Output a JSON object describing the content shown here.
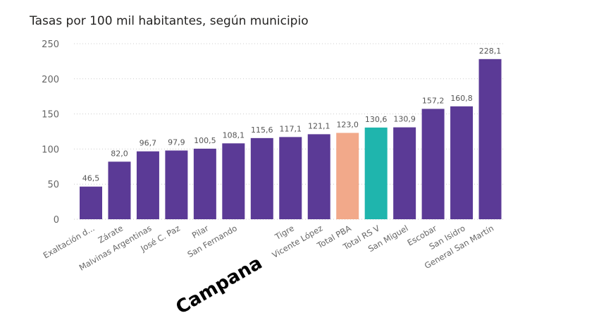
{
  "chart_data": {
    "type": "bar",
    "title": "Tasas por 100 mil habitantes, según municipio",
    "categories": [
      "Exaltación d...",
      "Zárate",
      "Malvinas Argentinas",
      "José C. Paz",
      "Pilar",
      "San Fernando",
      "Campana",
      "Tigre",
      "Vicente López",
      "Total PBA",
      "Total RS V",
      "San Miguel",
      "Escobar",
      "San Isidro",
      "General San Martín"
    ],
    "values": [
      46.5,
      82.0,
      96.7,
      97.9,
      100.5,
      108.1,
      115.6,
      117.1,
      121.1,
      123.0,
      130.6,
      130.9,
      157.2,
      160.8,
      228.1
    ],
    "data_labels": [
      "46,5",
      "82,0",
      "96,7",
      "97,9",
      "100,5",
      "108,1",
      "115,6",
      "117,1",
      "121,1",
      "123,0",
      "130,6",
      "130,9",
      "157,2",
      "160,8",
      "228,1"
    ],
    "highlighted_category": "Campana",
    "ylim": [
      0,
      250
    ],
    "yticks": [
      "0",
      "50",
      "100",
      "150",
      "200",
      "250"
    ],
    "xlabel": "",
    "ylabel": "",
    "grid": true,
    "colors": {
      "default": "#5b3a96",
      "Total PBA": "#f2a98a",
      "Total RS V": "#1fb5ad"
    }
  }
}
